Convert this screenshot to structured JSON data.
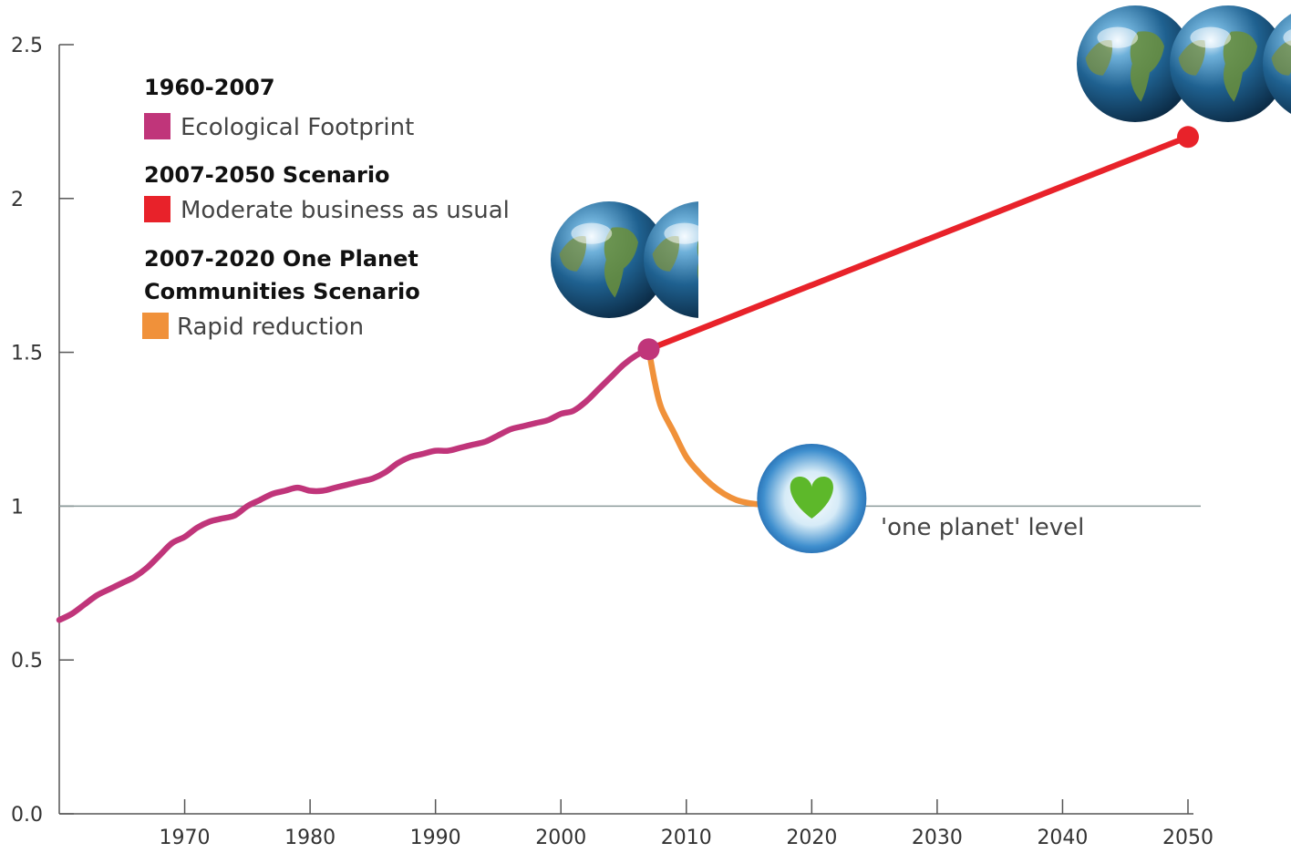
{
  "chart_data": {
    "type": "line",
    "title": "",
    "xlabel": "",
    "ylabel": "",
    "xlim": [
      1960,
      2050
    ],
    "ylim": [
      0,
      2.5
    ],
    "x_ticks": [
      1970,
      1980,
      1990,
      2000,
      2010,
      2020,
      2030,
      2040,
      2050
    ],
    "y_ticks": [
      {
        "value": 0,
        "label": "0.0"
      },
      {
        "value": 0.5,
        "label": "0.5"
      },
      {
        "value": 1,
        "label": "1"
      },
      {
        "value": 1.5,
        "label": "1.5"
      },
      {
        "value": 2,
        "label": "2"
      },
      {
        "value": 2.5,
        "label": "2.5"
      }
    ],
    "grid": false,
    "legend_position": "top-left",
    "legend": [
      {
        "group": "1960-2007",
        "entries": [
          {
            "label": "Ecological Footprint",
            "color": "#c0357a"
          }
        ]
      },
      {
        "group": "2007-2050 Scenario",
        "entries": [
          {
            "label": "Moderate business as usual",
            "color": "#e8222a"
          }
        ]
      },
      {
        "group_lines": [
          "2007-2020 One Planet",
          "Communities Scenario"
        ],
        "entries": [
          {
            "label": "Rapid reduction",
            "color": "#f0913a"
          }
        ]
      }
    ],
    "series": [
      {
        "name": "Ecological Footprint",
        "color": "#c0357a",
        "x": [
          1960,
          1961,
          1962,
          1963,
          1964,
          1965,
          1966,
          1967,
          1968,
          1969,
          1970,
          1971,
          1972,
          1973,
          1974,
          1975,
          1976,
          1977,
          1978,
          1979,
          1980,
          1981,
          1982,
          1983,
          1984,
          1985,
          1986,
          1987,
          1988,
          1989,
          1990,
          1991,
          1992,
          1993,
          1994,
          1995,
          1996,
          1997,
          1998,
          1999,
          2000,
          2001,
          2002,
          2003,
          2004,
          2005,
          2006,
          2007
        ],
        "values": [
          0.63,
          0.65,
          0.68,
          0.71,
          0.73,
          0.75,
          0.77,
          0.8,
          0.84,
          0.88,
          0.9,
          0.93,
          0.95,
          0.96,
          0.97,
          1.0,
          1.02,
          1.04,
          1.05,
          1.06,
          1.05,
          1.05,
          1.06,
          1.07,
          1.08,
          1.09,
          1.11,
          1.14,
          1.16,
          1.17,
          1.18,
          1.18,
          1.19,
          1.2,
          1.21,
          1.23,
          1.25,
          1.26,
          1.27,
          1.28,
          1.3,
          1.31,
          1.34,
          1.38,
          1.42,
          1.46,
          1.49,
          1.51
        ]
      },
      {
        "name": "Moderate business as usual",
        "color": "#e8222a",
        "x": [
          2007,
          2050
        ],
        "values": [
          1.51,
          2.2
        ]
      },
      {
        "name": "Rapid reduction",
        "color": "#f0913a",
        "x": [
          2007,
          2007.5,
          2008,
          2009,
          2010,
          2011,
          2012,
          2013,
          2014,
          2015,
          2016,
          2017
        ],
        "values": [
          1.51,
          1.4,
          1.32,
          1.24,
          1.16,
          1.11,
          1.07,
          1.04,
          1.02,
          1.01,
          1.005,
          1.0
        ]
      }
    ],
    "reference_line": {
      "value": 1,
      "label": "'one planet' level",
      "color": "#8a9a9a"
    },
    "markers": [
      {
        "x": 2007,
        "y": 1.51,
        "color": "#c0357a"
      },
      {
        "x": 2050,
        "y": 2.2,
        "color": "#e8222a"
      }
    ],
    "icons": [
      {
        "name": "earth-globe-icon",
        "count": 2,
        "near": "2007"
      },
      {
        "name": "earth-globe-icon",
        "count": 3,
        "near": "2050"
      },
      {
        "name": "heart-planet-icon",
        "x": 2020,
        "y": 1.0,
        "heart_color": "#5db82a"
      }
    ]
  }
}
